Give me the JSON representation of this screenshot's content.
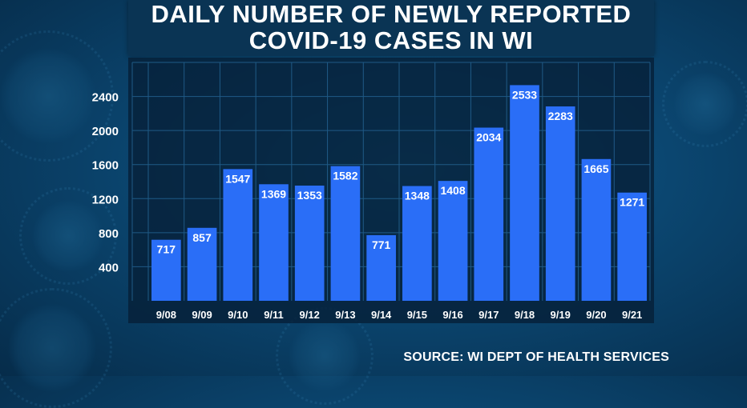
{
  "chart_data": {
    "type": "bar",
    "title": "DAILY NUMBER OF NEWLY REPORTED COVID-19 CASES IN WI",
    "title_lines": [
      "DAILY NUMBER OF NEWLY REPORTED",
      "COVID-19 CASES IN WI"
    ],
    "categories": [
      "9/08",
      "9/09",
      "9/10",
      "9/11",
      "9/12",
      "9/13",
      "9/14",
      "9/15",
      "9/16",
      "9/17",
      "9/18",
      "9/19",
      "9/20",
      "9/21"
    ],
    "values": [
      717,
      857,
      1547,
      1369,
      1353,
      1582,
      771,
      1348,
      1408,
      2034,
      2533,
      2283,
      1665,
      1271
    ],
    "yticks": [
      400,
      800,
      1200,
      1600,
      2000,
      2400
    ],
    "ylim": [
      0,
      2800
    ],
    "xlabel": "",
    "ylabel": "",
    "grid": true,
    "colors": {
      "bar": "#2a6ef7",
      "grid": "#1f5a86",
      "text": "#ffffff"
    }
  },
  "source": "SOURCE: WI DEPT OF HEALTH SERVICES"
}
